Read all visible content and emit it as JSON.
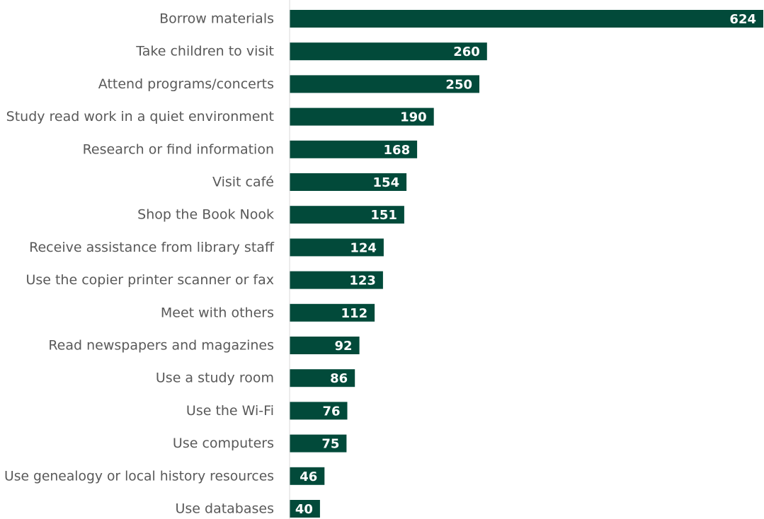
{
  "chart_data": {
    "type": "bar",
    "orientation": "horizontal",
    "categories": [
      "Borrow materials",
      "Take children to visit",
      "Attend programs/concerts",
      "Study read work in a quiet environment",
      "Research or find information",
      "Visit café",
      "Shop the Book Nook",
      "Receive assistance from library staff",
      "Use the copier printer scanner or fax",
      "Meet with others",
      "Read newspapers and magazines",
      "Use a study room",
      "Use the Wi-Fi",
      "Use computers",
      "Use genealogy or local history resources",
      "Use databases"
    ],
    "values": [
      624,
      260,
      250,
      190,
      168,
      154,
      151,
      124,
      123,
      112,
      92,
      86,
      76,
      75,
      46,
      40
    ],
    "data_labels": [
      "624",
      "260",
      "250",
      "190",
      "168",
      "154",
      "151",
      "124",
      "123",
      "112",
      "92",
      "86",
      "76",
      "75",
      "46",
      "40"
    ],
    "title": "",
    "xlabel": "",
    "ylabel": "",
    "xlim": [
      0,
      624
    ],
    "grid": false,
    "legend": "none",
    "colors": {
      "bar": "#024a3a",
      "axis": "#d9d9d9",
      "category_text": "#595959",
      "value_text": "#ffffff"
    }
  }
}
